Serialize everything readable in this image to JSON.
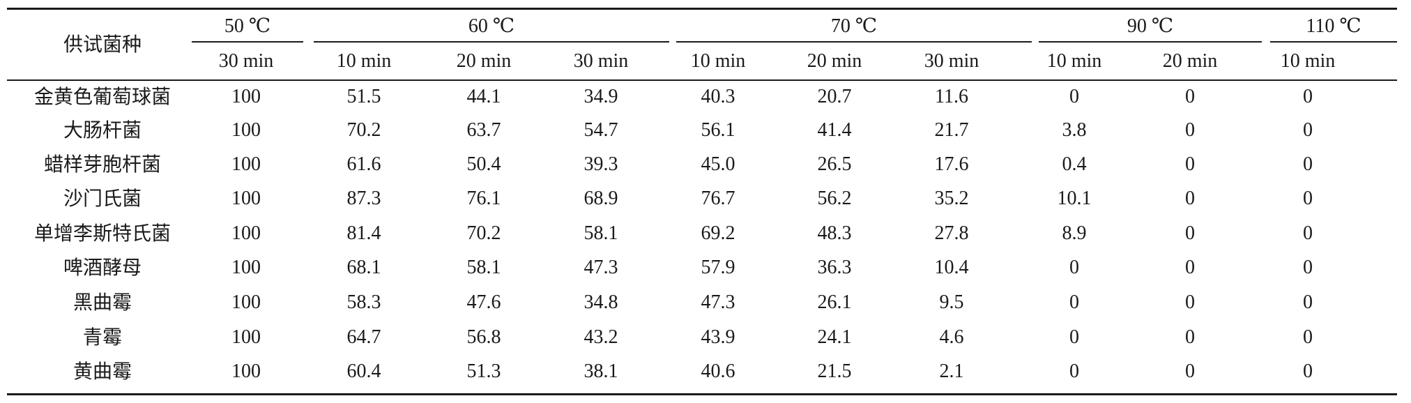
{
  "table": {
    "row_header_label": "供试菌种",
    "temperature_groups": [
      {
        "label": "50 ℃",
        "durations": [
          "30 min"
        ]
      },
      {
        "label": "60 ℃",
        "durations": [
          "10 min",
          "20 min",
          "30 min"
        ]
      },
      {
        "label": "70 ℃",
        "durations": [
          "10 min",
          "20 min",
          "30 min"
        ]
      },
      {
        "label": "90 ℃",
        "durations": [
          "10 min",
          "20 min"
        ]
      },
      {
        "label": "110 ℃",
        "durations": [
          "10 min"
        ]
      }
    ],
    "rows": [
      {
        "name": "金黄色葡萄球菌",
        "values": [
          "100",
          "51.5",
          "44.1",
          "34.9",
          "40.3",
          "20.7",
          "11.6",
          "0",
          "0",
          "0"
        ]
      },
      {
        "name": "大肠杆菌",
        "values": [
          "100",
          "70.2",
          "63.7",
          "54.7",
          "56.1",
          "41.4",
          "21.7",
          "3.8",
          "0",
          "0"
        ]
      },
      {
        "name": "蜡样芽胞杆菌",
        "values": [
          "100",
          "61.6",
          "50.4",
          "39.3",
          "45.0",
          "26.5",
          "17.6",
          "0.4",
          "0",
          "0"
        ]
      },
      {
        "name": "沙门氏菌",
        "values": [
          "100",
          "87.3",
          "76.1",
          "68.9",
          "76.7",
          "56.2",
          "35.2",
          "10.1",
          "0",
          "0"
        ]
      },
      {
        "name": "单增李斯特氏菌",
        "values": [
          "100",
          "81.4",
          "70.2",
          "58.1",
          "69.2",
          "48.3",
          "27.8",
          "8.9",
          "0",
          "0"
        ]
      },
      {
        "name": "啤酒酵母",
        "values": [
          "100",
          "68.1",
          "58.1",
          "47.3",
          "57.9",
          "36.3",
          "10.4",
          "0",
          "0",
          "0"
        ]
      },
      {
        "name": "黑曲霉",
        "values": [
          "100",
          "58.3",
          "47.6",
          "34.8",
          "47.3",
          "26.1",
          "9.5",
          "0",
          "0",
          "0"
        ]
      },
      {
        "name": "青霉",
        "values": [
          "100",
          "64.7",
          "56.8",
          "43.2",
          "43.9",
          "24.1",
          "4.6",
          "0",
          "0",
          "0"
        ]
      },
      {
        "name": "黄曲霉",
        "values": [
          "100",
          "60.4",
          "51.3",
          "38.1",
          "40.6",
          "21.5",
          "2.1",
          "0",
          "0",
          "0"
        ]
      }
    ]
  }
}
